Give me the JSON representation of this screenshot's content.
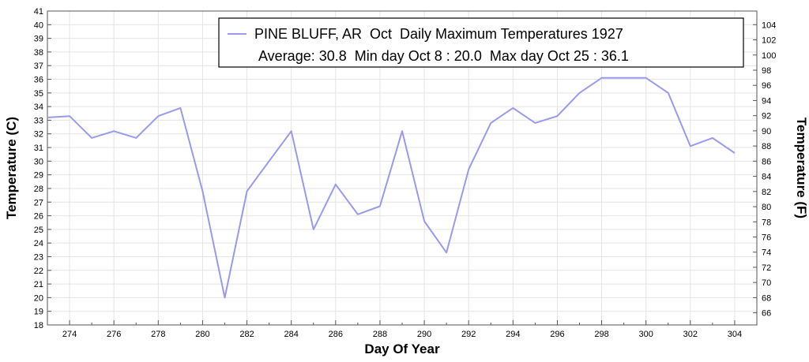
{
  "chart_data": {
    "type": "line",
    "title": "PINE BLUFF, AR  Oct  Daily Maximum Temperatures 1927",
    "subtitle": "Average: 30.8  Min day Oct 8 : 20.0  Max day Oct 25 : 36.1",
    "xlabel": "Day Of Year",
    "ylabel": "Temperature (C)",
    "ylabel_right": "Temperature (F)",
    "xlim": [
      273,
      305
    ],
    "ylim": [
      18,
      41
    ],
    "ylim_right_f": [
      64.4,
      105.8
    ],
    "x_ticks": [
      274,
      276,
      278,
      280,
      282,
      284,
      286,
      288,
      290,
      292,
      294,
      296,
      298,
      300,
      302,
      304
    ],
    "y_ticks": [
      18,
      19,
      20,
      21,
      22,
      23,
      24,
      25,
      26,
      27,
      28,
      29,
      30,
      31,
      32,
      33,
      34,
      35,
      36,
      37,
      38,
      39,
      40,
      41
    ],
    "y_ticks_right_f": [
      66,
      68,
      70,
      72,
      74,
      76,
      78,
      80,
      82,
      84,
      86,
      88,
      90,
      92,
      94,
      96,
      98,
      100,
      102,
      104
    ],
    "grid": true,
    "legend_position": "top-right",
    "series": [
      {
        "name": "PINE BLUFF, AR  Oct  Daily Maximum Temperatures 1927",
        "color": "#9999ee",
        "x": [
          273,
          274,
          275,
          276,
          277,
          278,
          279,
          280,
          281,
          282,
          283,
          284,
          285,
          286,
          287,
          288,
          289,
          290,
          291,
          292,
          293,
          294,
          295,
          296,
          297,
          298,
          299,
          300,
          301,
          302,
          303,
          304
        ],
        "y": [
          33.2,
          33.3,
          31.7,
          32.2,
          31.7,
          33.3,
          33.9,
          27.8,
          20.0,
          27.8,
          30.0,
          32.2,
          25.0,
          28.3,
          26.1,
          26.7,
          32.2,
          25.6,
          23.3,
          29.4,
          32.8,
          33.9,
          32.8,
          33.3,
          35.0,
          36.1,
          36.1,
          36.1,
          35.0,
          31.1,
          31.7,
          30.6
        ]
      }
    ]
  }
}
